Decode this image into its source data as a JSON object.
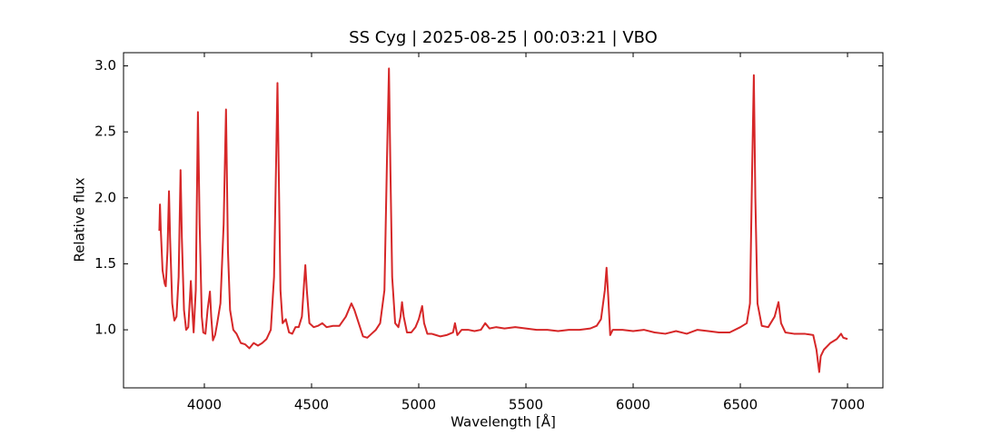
{
  "chart_data": {
    "type": "line",
    "title": "SS Cyg | 2025-08-25 | 00:03:21 | VBO",
    "xlabel": "Wavelength [Å]",
    "ylabel": "Relative flux",
    "color": "#d62728",
    "tick_direction": "in",
    "mirror_ticks": true,
    "xlim": [
      3623,
      7165
    ],
    "ylim": [
      0.56,
      3.1
    ],
    "xticks": [
      4000,
      4500,
      5000,
      5500,
      6000,
      6500,
      7000
    ],
    "yticks": [
      {
        "value": 1.0,
        "label": "1.0"
      },
      {
        "value": 1.5,
        "label": "1.5"
      },
      {
        "value": 2.0,
        "label": "2.0"
      },
      {
        "value": 2.5,
        "label": "2.5"
      },
      {
        "value": 3.0,
        "label": "3.0"
      }
    ],
    "x": [
      3790,
      3793,
      3797,
      3805,
      3815,
      3820,
      3828,
      3835,
      3840,
      3850,
      3860,
      3870,
      3880,
      3889,
      3895,
      3905,
      3915,
      3925,
      3933,
      3937,
      3942,
      3950,
      3960,
      3970,
      3978,
      3988,
      3995,
      4005,
      4015,
      4026,
      4032,
      4040,
      4050,
      4060,
      4075,
      4090,
      4101,
      4110,
      4120,
      4135,
      4150,
      4170,
      4190,
      4210,
      4230,
      4250,
      4270,
      4290,
      4310,
      4325,
      4335,
      4341,
      4347,
      4355,
      4365,
      4380,
      4395,
      4410,
      4425,
      4440,
      4455,
      4465,
      4471,
      4478,
      4490,
      4510,
      4530,
      4550,
      4570,
      4600,
      4630,
      4660,
      4686,
      4700,
      4720,
      4740,
      4760,
      4780,
      4800,
      4820,
      4840,
      4852,
      4861,
      4868,
      4876,
      4890,
      4905,
      4915,
      4922,
      4930,
      4945,
      4965,
      4985,
      5000,
      5016,
      5025,
      5040,
      5060,
      5080,
      5100,
      5130,
      5160,
      5169,
      5180,
      5200,
      5230,
      5260,
      5290,
      5310,
      5330,
      5360,
      5400,
      5450,
      5500,
      5550,
      5600,
      5650,
      5700,
      5750,
      5800,
      5830,
      5850,
      5868,
      5876,
      5884,
      5893,
      5905,
      5950,
      6000,
      6050,
      6100,
      6150,
      6200,
      6250,
      6300,
      6350,
      6400,
      6450,
      6500,
      6530,
      6545,
      6555,
      6563,
      6570,
      6580,
      6600,
      6630,
      6660,
      6678,
      6690,
      6710,
      6750,
      6800,
      6840,
      6855,
      6868,
      6875,
      6890,
      6920,
      6950,
      6970,
      6980,
      7000
    ],
    "values": [
      1.75,
      1.95,
      1.75,
      1.45,
      1.35,
      1.33,
      1.6,
      2.05,
      1.7,
      1.2,
      1.07,
      1.1,
      1.4,
      2.21,
      1.7,
      1.15,
      1.0,
      1.02,
      1.25,
      1.37,
      1.2,
      0.98,
      1.3,
      2.65,
      1.8,
      1.1,
      0.98,
      0.97,
      1.15,
      1.29,
      1.1,
      0.92,
      0.96,
      1.05,
      1.2,
      1.8,
      2.67,
      1.6,
      1.15,
      1.0,
      0.97,
      0.9,
      0.89,
      0.86,
      0.9,
      0.88,
      0.9,
      0.93,
      1.0,
      1.4,
      2.3,
      2.87,
      2.2,
      1.3,
      1.05,
      1.08,
      0.98,
      0.97,
      1.02,
      1.02,
      1.1,
      1.35,
      1.49,
      1.3,
      1.05,
      1.02,
      1.03,
      1.05,
      1.02,
      1.03,
      1.03,
      1.1,
      1.2,
      1.15,
      1.05,
      0.95,
      0.94,
      0.97,
      1.0,
      1.05,
      1.3,
      2.3,
      2.98,
      2.2,
      1.4,
      1.05,
      1.02,
      1.1,
      1.21,
      1.1,
      0.98,
      0.98,
      1.02,
      1.08,
      1.18,
      1.05,
      0.97,
      0.97,
      0.96,
      0.95,
      0.96,
      0.98,
      1.05,
      0.96,
      1.0,
      1.0,
      0.99,
      1.0,
      1.05,
      1.01,
      1.02,
      1.01,
      1.02,
      1.01,
      1.0,
      1.0,
      0.99,
      1.0,
      1.0,
      1.01,
      1.03,
      1.08,
      1.3,
      1.47,
      1.25,
      0.96,
      1.0,
      1.0,
      0.99,
      1.0,
      0.98,
      0.97,
      0.99,
      0.97,
      1.0,
      0.99,
      0.98,
      0.98,
      1.02,
      1.05,
      1.2,
      2.2,
      2.93,
      2.0,
      1.2,
      1.03,
      1.02,
      1.1,
      1.21,
      1.05,
      0.98,
      0.97,
      0.97,
      0.96,
      0.85,
      0.68,
      0.8,
      0.85,
      0.9,
      0.93,
      0.97,
      0.94,
      0.93
    ]
  }
}
